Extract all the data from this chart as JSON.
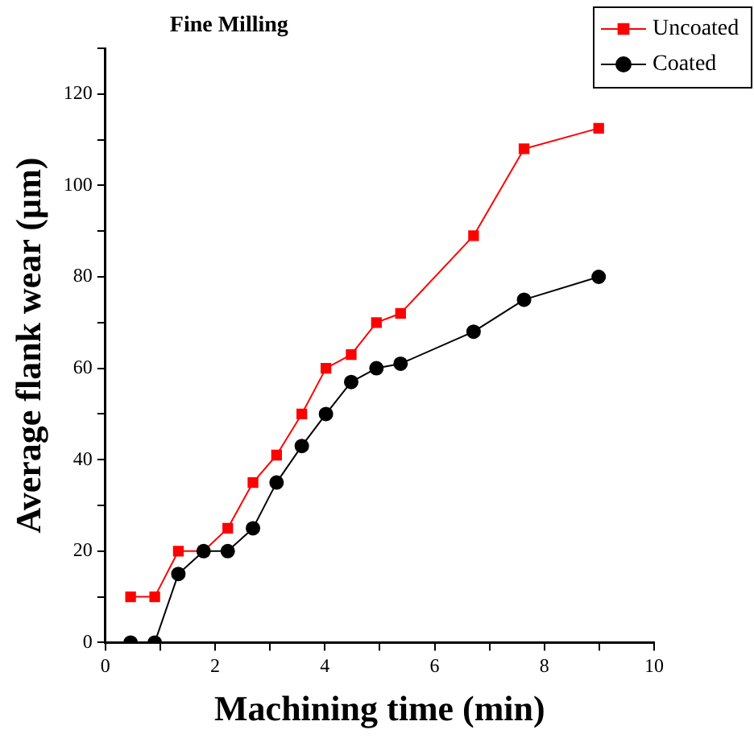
{
  "chart_data": {
    "type": "line",
    "title": "Fine Milling",
    "xlabel": "Machining time (min)",
    "ylabel": "Average flank wear (µm)",
    "x": [
      0.46,
      0.9,
      1.33,
      1.79,
      2.23,
      2.69,
      3.12,
      3.58,
      4.02,
      4.48,
      4.94,
      5.38,
      6.71,
      7.63,
      8.99
    ],
    "series": [
      {
        "name": "Uncoated",
        "color": "#ff0000",
        "marker": "square",
        "values": [
          10,
          10,
          20,
          20,
          25,
          35,
          41,
          50,
          60,
          63,
          70,
          72,
          89,
          108,
          112.5
        ]
      },
      {
        "name": "Coated",
        "color": "#000000",
        "marker": "circle",
        "values": [
          0,
          0,
          15,
          20,
          20,
          25,
          35,
          43,
          50,
          57,
          60,
          61,
          68,
          75,
          80
        ]
      }
    ],
    "xlim": [
      0,
      10
    ],
    "xticks": [
      0,
      {
        "value": 1,
        "label": null
      },
      2,
      {
        "value": 3,
        "label": null
      },
      4,
      {
        "value": 5,
        "label": null
      },
      6,
      {
        "value": 7,
        "label": null
      },
      8,
      {
        "value": 9,
        "label": null
      },
      10
    ],
    "ylim": [
      0,
      130
    ],
    "yticks": [
      0,
      {
        "value": 10,
        "label": null
      },
      20,
      {
        "value": 30,
        "label": null
      },
      40,
      {
        "value": 50,
        "label": null
      },
      60,
      {
        "value": 70,
        "label": null
      },
      80,
      {
        "value": 90,
        "label": null
      },
      100,
      {
        "value": 110,
        "label": null
      },
      120,
      {
        "value": 130,
        "label": null
      }
    ],
    "grid": false,
    "legend": "top right",
    "line_style": "solid"
  }
}
